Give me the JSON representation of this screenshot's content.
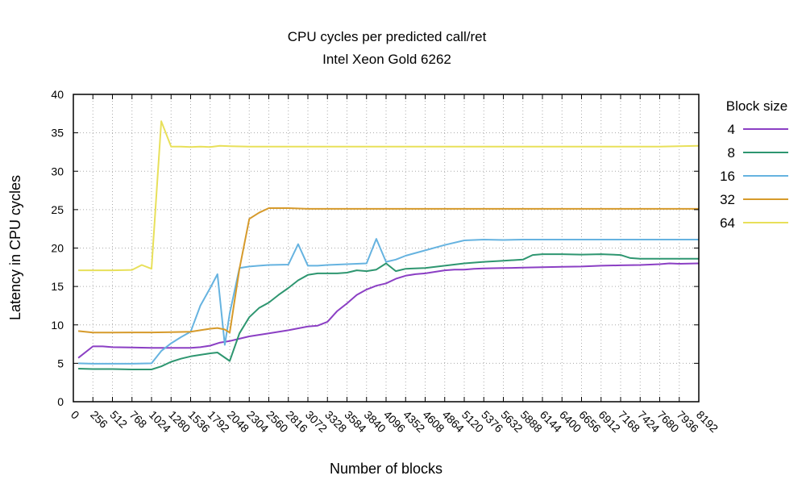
{
  "chart_data": {
    "type": "line",
    "title": "CPU cycles per predicted call/ret",
    "subtitle": "Intel Xeon Gold 6262",
    "xlabel": "Number of blocks",
    "ylabel": "Latency in CPU cycles",
    "xlim": [
      0,
      8192
    ],
    "ylim": [
      0,
      40
    ],
    "grid": true,
    "legend_title": "Block size",
    "legend_position": "right",
    "x_ticks": [
      "0",
      "256",
      "512",
      "768",
      "1024",
      "1280",
      "1536",
      "1792",
      "2048",
      "2304",
      "2560",
      "2816",
      "3072",
      "3328",
      "3584",
      "3840",
      "4096",
      "4352",
      "4608",
      "4864",
      "5120",
      "5376",
      "5632",
      "5888",
      "6144",
      "6400",
      "6656",
      "6912",
      "7168",
      "7424",
      "7680",
      "7936",
      "8192"
    ],
    "y_ticks": [
      "0",
      "5",
      "10",
      "15",
      "20",
      "25",
      "30",
      "35",
      "40"
    ],
    "series": [
      {
        "name": "4",
        "color": "#8b3fc4",
        "points": [
          [
            64,
            5.7
          ],
          [
            256,
            7.2
          ],
          [
            384,
            7.2
          ],
          [
            512,
            7.1
          ],
          [
            768,
            7.05
          ],
          [
            1024,
            7.0
          ],
          [
            1280,
            7.0
          ],
          [
            1408,
            7.0
          ],
          [
            1536,
            7.0
          ],
          [
            1664,
            7.1
          ],
          [
            1792,
            7.3
          ],
          [
            1920,
            7.7
          ],
          [
            2048,
            7.9
          ],
          [
            2176,
            8.2
          ],
          [
            2304,
            8.5
          ],
          [
            2560,
            8.9
          ],
          [
            2816,
            9.3
          ],
          [
            3072,
            9.8
          ],
          [
            3200,
            9.9
          ],
          [
            3328,
            10.4
          ],
          [
            3456,
            11.8
          ],
          [
            3584,
            12.8
          ],
          [
            3712,
            13.9
          ],
          [
            3840,
            14.6
          ],
          [
            3968,
            15.1
          ],
          [
            4096,
            15.4
          ],
          [
            4224,
            16.0
          ],
          [
            4352,
            16.4
          ],
          [
            4480,
            16.6
          ],
          [
            4608,
            16.7
          ],
          [
            4736,
            16.9
          ],
          [
            4864,
            17.1
          ],
          [
            4992,
            17.2
          ],
          [
            5120,
            17.2
          ],
          [
            5248,
            17.3
          ],
          [
            5376,
            17.35
          ],
          [
            5632,
            17.4
          ],
          [
            5888,
            17.45
          ],
          [
            6144,
            17.5
          ],
          [
            6400,
            17.55
          ],
          [
            6656,
            17.6
          ],
          [
            6912,
            17.7
          ],
          [
            7168,
            17.75
          ],
          [
            7424,
            17.8
          ],
          [
            7680,
            17.9
          ],
          [
            7808,
            18.0
          ],
          [
            7936,
            17.95
          ],
          [
            8192,
            18.0
          ]
        ]
      },
      {
        "name": "8",
        "color": "#2e9670",
        "points": [
          [
            64,
            4.3
          ],
          [
            256,
            4.25
          ],
          [
            512,
            4.25
          ],
          [
            768,
            4.2
          ],
          [
            1024,
            4.2
          ],
          [
            1152,
            4.6
          ],
          [
            1280,
            5.2
          ],
          [
            1408,
            5.6
          ],
          [
            1536,
            5.9
          ],
          [
            1664,
            6.1
          ],
          [
            1792,
            6.3
          ],
          [
            1888,
            6.4
          ],
          [
            2048,
            5.3
          ],
          [
            2176,
            8.9
          ],
          [
            2304,
            11.0
          ],
          [
            2432,
            12.2
          ],
          [
            2560,
            12.9
          ],
          [
            2688,
            13.9
          ],
          [
            2816,
            14.8
          ],
          [
            2944,
            15.8
          ],
          [
            3072,
            16.5
          ],
          [
            3200,
            16.7
          ],
          [
            3456,
            16.7
          ],
          [
            3584,
            16.8
          ],
          [
            3712,
            17.1
          ],
          [
            3840,
            17.0
          ],
          [
            3968,
            17.2
          ],
          [
            4096,
            18.0
          ],
          [
            4224,
            17.0
          ],
          [
            4352,
            17.3
          ],
          [
            4608,
            17.4
          ],
          [
            4864,
            17.7
          ],
          [
            5120,
            18.0
          ],
          [
            5376,
            18.2
          ],
          [
            5632,
            18.35
          ],
          [
            5888,
            18.5
          ],
          [
            6016,
            19.1
          ],
          [
            6144,
            19.2
          ],
          [
            6400,
            19.2
          ],
          [
            6656,
            19.15
          ],
          [
            6912,
            19.2
          ],
          [
            7168,
            19.1
          ],
          [
            7296,
            18.7
          ],
          [
            7424,
            18.6
          ],
          [
            7680,
            18.6
          ],
          [
            7936,
            18.6
          ],
          [
            8192,
            18.6
          ]
        ]
      },
      {
        "name": "16",
        "color": "#66b3e0",
        "points": [
          [
            64,
            5.0
          ],
          [
            256,
            4.95
          ],
          [
            512,
            4.95
          ],
          [
            768,
            4.95
          ],
          [
            1024,
            5.0
          ],
          [
            1152,
            6.6
          ],
          [
            1280,
            7.6
          ],
          [
            1408,
            8.4
          ],
          [
            1536,
            9.1
          ],
          [
            1664,
            12.5
          ],
          [
            1792,
            14.8
          ],
          [
            1888,
            16.6
          ],
          [
            1984,
            7.4
          ],
          [
            2048,
            11.5
          ],
          [
            2176,
            17.4
          ],
          [
            2304,
            17.6
          ],
          [
            2432,
            17.7
          ],
          [
            2560,
            17.8
          ],
          [
            2816,
            17.85
          ],
          [
            2944,
            20.5
          ],
          [
            3072,
            17.7
          ],
          [
            3200,
            17.7
          ],
          [
            3328,
            17.8
          ],
          [
            3584,
            17.9
          ],
          [
            3840,
            18.0
          ],
          [
            3968,
            21.2
          ],
          [
            4096,
            18.2
          ],
          [
            4224,
            18.5
          ],
          [
            4352,
            19.0
          ],
          [
            4608,
            19.7
          ],
          [
            4864,
            20.4
          ],
          [
            5120,
            21.0
          ],
          [
            5376,
            21.1
          ],
          [
            5632,
            21.05
          ],
          [
            5888,
            21.1
          ],
          [
            6144,
            21.1
          ],
          [
            6656,
            21.1
          ],
          [
            7168,
            21.1
          ],
          [
            7680,
            21.1
          ],
          [
            8192,
            21.1
          ]
        ]
      },
      {
        "name": "32",
        "color": "#d69a2b",
        "points": [
          [
            64,
            9.2
          ],
          [
            256,
            9.0
          ],
          [
            512,
            9.0
          ],
          [
            768,
            9.02
          ],
          [
            1024,
            9.02
          ],
          [
            1280,
            9.05
          ],
          [
            1536,
            9.1
          ],
          [
            1664,
            9.3
          ],
          [
            1792,
            9.5
          ],
          [
            1888,
            9.6
          ],
          [
            1984,
            9.4
          ],
          [
            2048,
            9.0
          ],
          [
            2176,
            17.3
          ],
          [
            2304,
            23.8
          ],
          [
            2432,
            24.6
          ],
          [
            2560,
            25.2
          ],
          [
            2816,
            25.2
          ],
          [
            3072,
            25.1
          ],
          [
            3584,
            25.1
          ],
          [
            4096,
            25.1
          ],
          [
            4608,
            25.1
          ],
          [
            5120,
            25.1
          ],
          [
            5632,
            25.1
          ],
          [
            6144,
            25.1
          ],
          [
            6656,
            25.1
          ],
          [
            7168,
            25.1
          ],
          [
            7680,
            25.1
          ],
          [
            8192,
            25.1
          ]
        ]
      },
      {
        "name": "64",
        "color": "#e8e05a",
        "points": [
          [
            64,
            17.1
          ],
          [
            256,
            17.1
          ],
          [
            512,
            17.1
          ],
          [
            768,
            17.15
          ],
          [
            896,
            17.8
          ],
          [
            1024,
            17.3
          ],
          [
            1152,
            36.5
          ],
          [
            1280,
            33.2
          ],
          [
            1408,
            33.2
          ],
          [
            1536,
            33.15
          ],
          [
            1664,
            33.2
          ],
          [
            1792,
            33.15
          ],
          [
            1920,
            33.3
          ],
          [
            2048,
            33.25
          ],
          [
            2304,
            33.2
          ],
          [
            2560,
            33.2
          ],
          [
            3072,
            33.2
          ],
          [
            3584,
            33.2
          ],
          [
            4096,
            33.2
          ],
          [
            4608,
            33.2
          ],
          [
            5120,
            33.2
          ],
          [
            5632,
            33.2
          ],
          [
            6144,
            33.2
          ],
          [
            6656,
            33.2
          ],
          [
            7168,
            33.2
          ],
          [
            7680,
            33.2
          ],
          [
            8192,
            33.3
          ]
        ]
      }
    ]
  }
}
